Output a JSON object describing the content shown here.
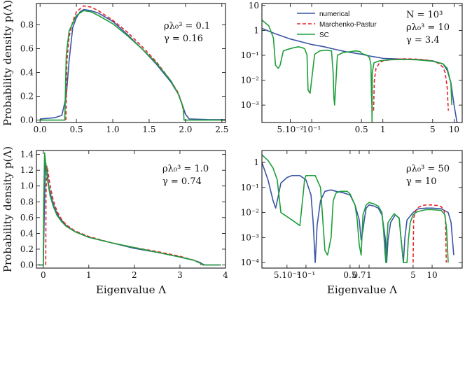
{
  "colors": {
    "numerical": "#3a55a4",
    "marchenko_pastur": "#e8242b",
    "sc": "#1e9e3a"
  },
  "legend": [
    "numerical",
    "Marchenko-Pastur",
    "SC"
  ],
  "shared": {
    "ylabel": "Probability density p(Λ)",
    "xlabel": "Eigenvalue Λ"
  },
  "chart_data": [
    {
      "id": "p1",
      "type": "line",
      "xscale": "linear",
      "yscale": "linear",
      "xlim": [
        -0.05,
        2.55
      ],
      "ylim": [
        -0.02,
        0.98
      ],
      "xticks": [
        0.0,
        0.5,
        1.0,
        1.5,
        2.0,
        2.5
      ],
      "xtick_labels": [
        "0.0",
        "0.5",
        "1.0",
        "1.5",
        "2.0",
        "2.5"
      ],
      "yticks": [
        0.0,
        0.2,
        0.4,
        0.6,
        0.8
      ],
      "ytick_labels": [
        "0.0",
        "0.2",
        "0.4",
        "0.6",
        "0.8"
      ],
      "annotation": [
        "ρλ₀³ = 0.1",
        "γ  = 0.16"
      ],
      "series": [
        {
          "name": "numerical",
          "x": [
            0.0,
            0.2,
            0.3,
            0.36,
            0.4,
            0.45,
            0.5,
            0.55,
            0.6,
            0.7,
            0.8,
            1.0,
            1.2,
            1.4,
            1.6,
            1.8,
            1.9,
            1.95,
            2.0,
            2.05,
            2.3,
            2.55
          ],
          "y": [
            0.01,
            0.02,
            0.04,
            0.2,
            0.5,
            0.78,
            0.86,
            0.91,
            0.93,
            0.92,
            0.9,
            0.83,
            0.72,
            0.6,
            0.47,
            0.32,
            0.22,
            0.14,
            0.05,
            0.01,
            0.005,
            0.003
          ]
        },
        {
          "name": "Marchenko-Pastur",
          "x": [
            0.355,
            0.37,
            0.4,
            0.45,
            0.5,
            0.6,
            0.7,
            0.8,
            1.0,
            1.2,
            1.4,
            1.6,
            1.8,
            1.9,
            1.95,
            1.98
          ],
          "y": [
            0.0,
            0.5,
            0.7,
            0.83,
            0.91,
            0.96,
            0.95,
            0.92,
            0.84,
            0.74,
            0.62,
            0.49,
            0.33,
            0.23,
            0.14,
            0.05
          ]
        },
        {
          "name": "SC",
          "x": [
            0.0,
            0.34,
            0.36,
            0.4,
            0.5,
            0.6,
            0.7,
            0.8,
            1.0,
            1.2,
            1.4,
            1.6,
            1.8,
            1.9,
            1.97,
            1.98,
            2.55
          ],
          "y": [
            0.0,
            0.0,
            0.55,
            0.75,
            0.88,
            0.92,
            0.91,
            0.88,
            0.81,
            0.71,
            0.6,
            0.48,
            0.33,
            0.22,
            0.1,
            0.0,
            0.0
          ]
        }
      ]
    },
    {
      "id": "p2",
      "type": "line",
      "xscale": "log",
      "yscale": "log",
      "xlim": [
        0.02,
        13
      ],
      "ylim": [
        0.0002,
        12
      ],
      "xticks": [
        0.05,
        0.1,
        0.5,
        1,
        5,
        10
      ],
      "xtick_labels": [
        "5.10⁻²",
        "10⁻¹",
        "0.5",
        "1",
        "5",
        "10"
      ],
      "yticks": [
        0.001,
        0.01,
        0.1,
        1,
        10
      ],
      "ytick_labels": [
        "10⁻³",
        "10⁻²",
        "10⁻¹",
        "1",
        "10"
      ],
      "annotation": [
        "N = 10³",
        "ρλ₀³ = 10",
        "γ  = 3.4"
      ],
      "series": [
        {
          "name": "numerical",
          "x": [
            0.02,
            0.03,
            0.05,
            0.08,
            0.1,
            0.15,
            0.2,
            0.3,
            0.5,
            0.7,
            0.9,
            1,
            2,
            3,
            5,
            7,
            8,
            9,
            10,
            11
          ],
          "y": [
            1.2,
            0.75,
            0.45,
            0.32,
            0.27,
            0.22,
            0.18,
            0.14,
            0.11,
            0.09,
            0.08,
            0.075,
            0.07,
            0.068,
            0.06,
            0.045,
            0.025,
            0.008,
            0.001,
            0.0002
          ]
        },
        {
          "name": "Marchenko-Pastur",
          "x": [
            0.74,
            0.76,
            0.8,
            0.9,
            1,
            1.5,
            2,
            3,
            4,
            5,
            6,
            7,
            7.5,
            8,
            8.3
          ],
          "y": [
            0.0006,
            0.01,
            0.03,
            0.05,
            0.06,
            0.07,
            0.072,
            0.07,
            0.065,
            0.058,
            0.048,
            0.033,
            0.02,
            0.005,
            0.0006
          ]
        },
        {
          "name": "SC",
          "x": [
            0.02,
            0.025,
            0.029,
            0.031,
            0.034,
            0.036,
            0.04,
            0.045,
            0.055,
            0.065,
            0.075,
            0.08,
            0.086,
            0.089,
            0.095,
            0.11,
            0.13,
            0.16,
            0.19,
            0.2,
            0.205,
            0.21,
            0.23,
            0.28,
            0.35,
            0.42,
            0.48,
            0.5,
            0.6,
            0.65,
            0.68,
            0.69,
            0.7,
            0.705,
            0.71,
            0.75,
            0.9,
            1.2,
            2,
            3,
            5,
            7,
            8,
            9,
            9.3
          ],
          "y": [
            2.6,
            1.5,
            0.5,
            0.04,
            0.03,
            0.04,
            0.15,
            0.17,
            0.2,
            0.22,
            0.2,
            0.18,
            0.1,
            0.004,
            0.003,
            0.11,
            0.15,
            0.16,
            0.15,
            0.02,
            0.002,
            0.001,
            0.1,
            0.13,
            0.14,
            0.15,
            0.14,
            0.12,
            0.1,
            0.08,
            0.04,
            0.003,
            0.001,
            0.0002,
            0.02,
            0.05,
            0.06,
            0.066,
            0.068,
            0.066,
            0.058,
            0.045,
            0.03,
            0.008,
            0.001
          ]
        }
      ]
    },
    {
      "id": "p3",
      "type": "line",
      "xscale": "linear",
      "yscale": "linear",
      "xlim": [
        -0.15,
        4.0
      ],
      "ylim": [
        -0.04,
        1.45
      ],
      "xticks": [
        0,
        1,
        2,
        3,
        4
      ],
      "xtick_labels": [
        "0",
        "1",
        "2",
        "3",
        "4"
      ],
      "yticks": [
        0.0,
        0.2,
        0.4,
        0.6,
        0.8,
        1.0,
        1.2,
        1.4
      ],
      "ytick_labels": [
        "0.0",
        "0.2",
        "0.4",
        "0.6",
        "0.8",
        "1.0",
        "1.2",
        "1.4"
      ],
      "annotation": [
        "ρλ₀³ = 1.0",
        "γ  = 0.74"
      ],
      "series": [
        {
          "name": "numerical",
          "x": [
            -0.1,
            0.0,
            0.02,
            0.05,
            0.08,
            0.12,
            0.18,
            0.25,
            0.35,
            0.5,
            0.7,
            1.0,
            1.5,
            2.0,
            2.5,
            3.0,
            3.3,
            3.45,
            3.5,
            3.55,
            3.9
          ],
          "y": [
            0.0,
            0.0,
            0.6,
            1.3,
            1.2,
            1.0,
            0.85,
            0.72,
            0.6,
            0.5,
            0.42,
            0.35,
            0.28,
            0.21,
            0.16,
            0.1,
            0.06,
            0.03,
            0.01,
            0.0,
            0.0
          ]
        },
        {
          "name": "Marchenko-Pastur",
          "x": [
            0.055,
            0.06,
            0.08,
            0.1,
            0.13,
            0.17,
            0.22,
            0.3,
            0.4,
            0.5,
            0.7,
            1.0,
            1.5,
            2.0,
            2.5,
            3.0,
            3.3,
            3.42,
            3.46
          ],
          "y": [
            0.0,
            0.9,
            1.25,
            1.2,
            1.08,
            0.95,
            0.82,
            0.68,
            0.58,
            0.51,
            0.43,
            0.36,
            0.28,
            0.22,
            0.17,
            0.11,
            0.06,
            0.03,
            0.0
          ]
        },
        {
          "name": "SC",
          "x": [
            -0.1,
            0.0,
            0.01,
            0.03,
            0.06,
            0.1,
            0.15,
            0.22,
            0.3,
            0.4,
            0.5,
            0.7,
            1.0,
            1.5,
            2.0,
            2.5,
            3.0,
            3.3,
            3.45,
            3.5,
            3.9
          ],
          "y": [
            0.0,
            0.0,
            0.8,
            1.42,
            1.25,
            1.05,
            0.88,
            0.74,
            0.63,
            0.55,
            0.49,
            0.42,
            0.35,
            0.28,
            0.22,
            0.16,
            0.1,
            0.06,
            0.02,
            0.0,
            0.0
          ]
        }
      ]
    },
    {
      "id": "p4",
      "type": "line",
      "xscale": "log",
      "yscale": "log",
      "xlim": [
        0.02,
        30
      ],
      "ylim": [
        6e-05,
        3
      ],
      "xticks": [
        0.05,
        0.1,
        0.5,
        0.7,
        1,
        5,
        10
      ],
      "xtick_labels": [
        "5.10⁻²",
        "10⁻¹",
        "0.5",
        "0.7",
        "1",
        "5",
        "10"
      ],
      "yticks": [
        0.0001,
        0.001,
        0.01,
        0.1,
        1
      ],
      "ytick_labels": [
        "10⁻⁴",
        "10⁻³",
        "10⁻²",
        "10⁻¹",
        "1"
      ],
      "annotation": [
        "ρλ₀³ = 50",
        "γ  = 10"
      ],
      "series": [
        {
          "name": "numerical",
          "x": [
            0.02,
            0.025,
            0.03,
            0.033,
            0.036,
            0.04,
            0.05,
            0.06,
            0.08,
            0.1,
            0.12,
            0.13,
            0.14,
            0.15,
            0.17,
            0.2,
            0.25,
            0.3,
            0.4,
            0.5,
            0.6,
            0.7,
            0.75,
            0.8,
            0.85,
            0.9,
            1.0,
            1.2,
            1.4,
            1.6,
            1.8,
            1.9,
            2.0,
            2.2,
            2.6,
            3.0,
            3.2,
            3.5,
            3.7,
            4.0,
            5.0,
            6,
            8,
            10,
            14,
            18,
            20,
            22
          ],
          "y": [
            1.0,
            0.2,
            0.03,
            0.015,
            0.04,
            0.15,
            0.25,
            0.3,
            0.3,
            0.2,
            0.05,
            0.004,
            0.0001,
            0.003,
            0.03,
            0.07,
            0.08,
            0.07,
            0.06,
            0.05,
            0.02,
            0.005,
            0.0008,
            0.002,
            0.006,
            0.015,
            0.02,
            0.018,
            0.015,
            0.008,
            0.001,
            0.0001,
            0.0008,
            0.004,
            0.008,
            0.006,
            0.001,
            0.0001,
            0.001,
            0.005,
            0.01,
            0.014,
            0.015,
            0.015,
            0.014,
            0.01,
            0.004,
            0.0002
          ]
        },
        {
          "name": "Marchenko-Pastur",
          "x": [
            5.0,
            5.1,
            5.5,
            6,
            7,
            8,
            10,
            12,
            14,
            15.5,
            16.3,
            16.8
          ],
          "y": [
            0.0001,
            0.006,
            0.012,
            0.016,
            0.019,
            0.02,
            0.02,
            0.019,
            0.017,
            0.012,
            0.005,
            0.0001
          ]
        },
        {
          "name": "SC",
          "x": [
            0.02,
            0.025,
            0.03,
            0.035,
            0.04,
            0.06,
            0.08,
            0.09,
            0.095,
            0.1,
            0.14,
            0.17,
            0.2,
            0.22,
            0.25,
            0.27,
            0.3,
            0.35,
            0.45,
            0.5,
            0.6,
            0.65,
            0.7,
            0.75,
            0.8,
            0.9,
            1.0,
            1.2,
            1.4,
            1.6,
            1.7,
            1.8,
            1.85,
            1.9,
            2.0,
            2.5,
            3.0,
            3.2,
            3.5,
            4.0,
            4.2,
            4.5,
            5.0,
            5.5,
            6,
            8,
            10,
            14,
            16,
            17,
            18
          ],
          "y": [
            2.0,
            1.2,
            0.6,
            0.2,
            0.01,
            0.005,
            0.003,
            0.05,
            0.2,
            0.3,
            0.3,
            0.1,
            0.0003,
            0.0002,
            0.001,
            0.03,
            0.06,
            0.07,
            0.07,
            0.055,
            0.02,
            0.005,
            0.0005,
            0.0002,
            0.008,
            0.02,
            0.025,
            0.022,
            0.018,
            0.01,
            0.002,
            0.0002,
            0.0001,
            0.0005,
            0.004,
            0.009,
            0.006,
            0.001,
            0.0001,
            0.0001,
            0.0008,
            0.004,
            0.008,
            0.01,
            0.011,
            0.013,
            0.013,
            0.012,
            0.008,
            0.002,
            0.0001
          ]
        }
      ]
    }
  ]
}
